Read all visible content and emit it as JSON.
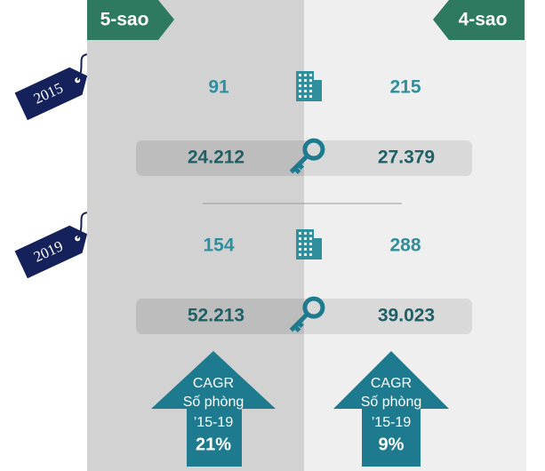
{
  "header": {
    "left": "5-sao",
    "right": "4-sao"
  },
  "years": [
    {
      "label": "2015",
      "hotels": {
        "left": "91",
        "right": "215"
      },
      "rooms": {
        "left": "24.212",
        "right": "27.379"
      }
    },
    {
      "label": "2019",
      "hotels": {
        "left": "154",
        "right": "288"
      },
      "rooms": {
        "left": "52.213",
        "right": "39.023"
      }
    }
  ],
  "cagr": [
    {
      "lines": [
        "CAGR",
        "Số phòng",
        "’15-19"
      ],
      "value": "21%"
    },
    {
      "lines": [
        "CAGR",
        "Số phòng",
        "’15-19"
      ],
      "value": "9%"
    }
  ]
}
